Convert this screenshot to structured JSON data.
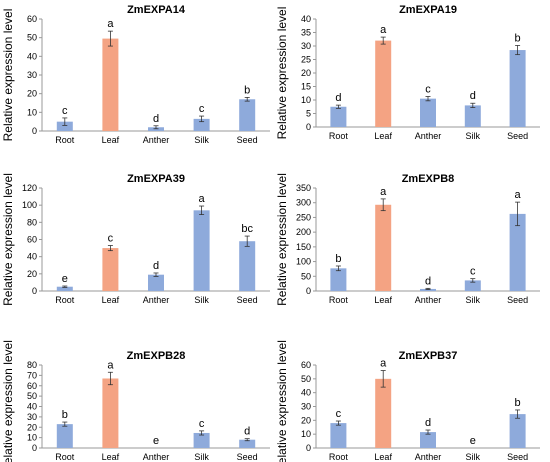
{
  "figure": {
    "ylabel": "Relative expression level"
  },
  "colors": {
    "root": "#8eaadb",
    "leaf": "#f4a383",
    "bar_default": "#8eaadb",
    "axis": "#999999",
    "text": "#000000"
  },
  "chart_data": [
    {
      "type": "bar",
      "title": "ZmEXPA14",
      "categories": [
        "Root",
        "Leaf",
        "Anther",
        "Silk",
        "Seed"
      ],
      "values": [
        5,
        49.5,
        2,
        6.5,
        17
      ],
      "errors": [
        2,
        4,
        0.8,
        1.5,
        1
      ],
      "significance": [
        "c",
        "a",
        "d",
        "c",
        "b"
      ],
      "ylabel": "Relative expression level",
      "ylim": [
        0,
        60
      ],
      "yticks": [
        0,
        10,
        20,
        30,
        40,
        50,
        60
      ],
      "highlight_index": 1
    },
    {
      "type": "bar",
      "title": "ZmEXPA19",
      "categories": [
        "Root",
        "Leaf",
        "Anther",
        "Silk",
        "Seed"
      ],
      "values": [
        7.5,
        32,
        10.5,
        8,
        28.5
      ],
      "errors": [
        0.6,
        1.3,
        0.8,
        0.8,
        1.7
      ],
      "significance": [
        "d",
        "a",
        "c",
        "d",
        "b"
      ],
      "ylabel": "Relative expression level",
      "ylim": [
        0,
        40
      ],
      "yticks": [
        0,
        5,
        10,
        15,
        20,
        25,
        30,
        35,
        40
      ],
      "highlight_index": 1
    },
    {
      "type": "bar",
      "title": "ZmEXPA39",
      "categories": [
        "Root",
        "Leaf",
        "Anther",
        "Silk",
        "Seed"
      ],
      "values": [
        5,
        50,
        19,
        94,
        58
      ],
      "errors": [
        0.8,
        3,
        2,
        5,
        6
      ],
      "significance": [
        "e",
        "c",
        "d",
        "a",
        "bc"
      ],
      "ylabel": "Relative expression level",
      "ylim": [
        0,
        120
      ],
      "yticks": [
        0,
        20,
        40,
        60,
        80,
        100,
        120
      ],
      "highlight_index": 1
    },
    {
      "type": "bar",
      "title": "ZmEXPB8",
      "categories": [
        "Root",
        "Leaf",
        "Anther",
        "Silk",
        "Seed"
      ],
      "values": [
        77,
        293,
        7,
        36,
        262
      ],
      "errors": [
        8,
        20,
        2,
        6,
        40
      ],
      "significance": [
        "b",
        "a",
        "d",
        "c",
        "a"
      ],
      "ylabel": "Relative expression level",
      "ylim": [
        0,
        350
      ],
      "yticks": [
        0,
        50,
        100,
        150,
        200,
        250,
        300,
        350
      ],
      "highlight_index": 1
    },
    {
      "type": "bar",
      "title": "ZmEXPB28",
      "categories": [
        "Root",
        "Leaf",
        "Anther",
        "Silk",
        "Seed"
      ],
      "values": [
        23,
        67,
        0,
        14.5,
        8
      ],
      "errors": [
        2,
        6,
        0,
        2,
        1
      ],
      "significance": [
        "b",
        "a",
        "e",
        "c",
        "d"
      ],
      "ylabel": "Relative expression level",
      "ylim": [
        0,
        80
      ],
      "yticks": [
        0,
        10,
        20,
        30,
        40,
        50,
        60,
        70,
        80
      ],
      "highlight_index": 1
    },
    {
      "type": "bar",
      "title": "ZmEXPB37",
      "categories": [
        "Root",
        "Leaf",
        "Anther",
        "Silk",
        "Seed"
      ],
      "values": [
        18,
        50,
        11.5,
        0,
        24.5
      ],
      "errors": [
        1.5,
        6,
        1.5,
        0,
        3
      ],
      "significance": [
        "c",
        "a",
        "d",
        "e",
        "b"
      ],
      "ylabel": "Relative expression level",
      "ylim": [
        0,
        60
      ],
      "yticks": [
        0,
        10,
        20,
        30,
        40,
        50,
        60
      ],
      "highlight_index": 1
    }
  ]
}
